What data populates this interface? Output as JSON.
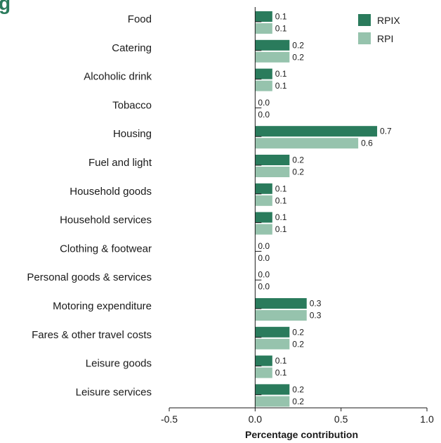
{
  "page": {
    "title_fragment": "g"
  },
  "chart_data": {
    "type": "bar",
    "orientation": "horizontal",
    "categories": [
      "Food",
      "Catering",
      "Alcoholic drink",
      "Tobacco",
      "Housing",
      "Fuel and light",
      "Household goods",
      "Household services",
      "Clothing & footwear",
      "Personal goods & services",
      "Motoring expenditure",
      "Fares & other travel costs",
      "Leisure goods",
      "Leisure services"
    ],
    "series": [
      {
        "name": "RPIX",
        "color": "#2a7b5c",
        "values": [
          0.1,
          0.2,
          0.1,
          0.0,
          0.71,
          0.2,
          0.1,
          0.1,
          0.0,
          0.0,
          0.3,
          0.2,
          0.1,
          0.2
        ],
        "labels": [
          "0.1",
          "0.2",
          "0.1",
          "0.0",
          "0.7",
          "0.2",
          "0.1",
          "0.1",
          "0.0",
          "0.0",
          "0.3",
          "0.2",
          "0.1",
          "0.2"
        ]
      },
      {
        "name": "RPI",
        "color": "#96c3ad",
        "values": [
          0.1,
          0.2,
          0.1,
          0.0,
          0.6,
          0.2,
          0.1,
          0.1,
          0.0,
          0.0,
          0.3,
          0.2,
          0.1,
          0.2
        ],
        "labels": [
          "0.1",
          "0.2",
          "0.1",
          "0.0",
          "0.6",
          "0.2",
          "0.1",
          "0.1",
          "0.0",
          "0.0",
          "0.3",
          "0.2",
          "0.1",
          "0.2"
        ]
      }
    ],
    "xlabel": "Percentage contribution",
    "xlim": [
      -0.5,
      1.0
    ],
    "xticks": [
      -0.5,
      0.0,
      0.5,
      1.0
    ],
    "xtick_labels": [
      "-0.5",
      "0.0",
      "0.5",
      "1.0"
    ],
    "grid": false,
    "legend_position": "top-right"
  }
}
